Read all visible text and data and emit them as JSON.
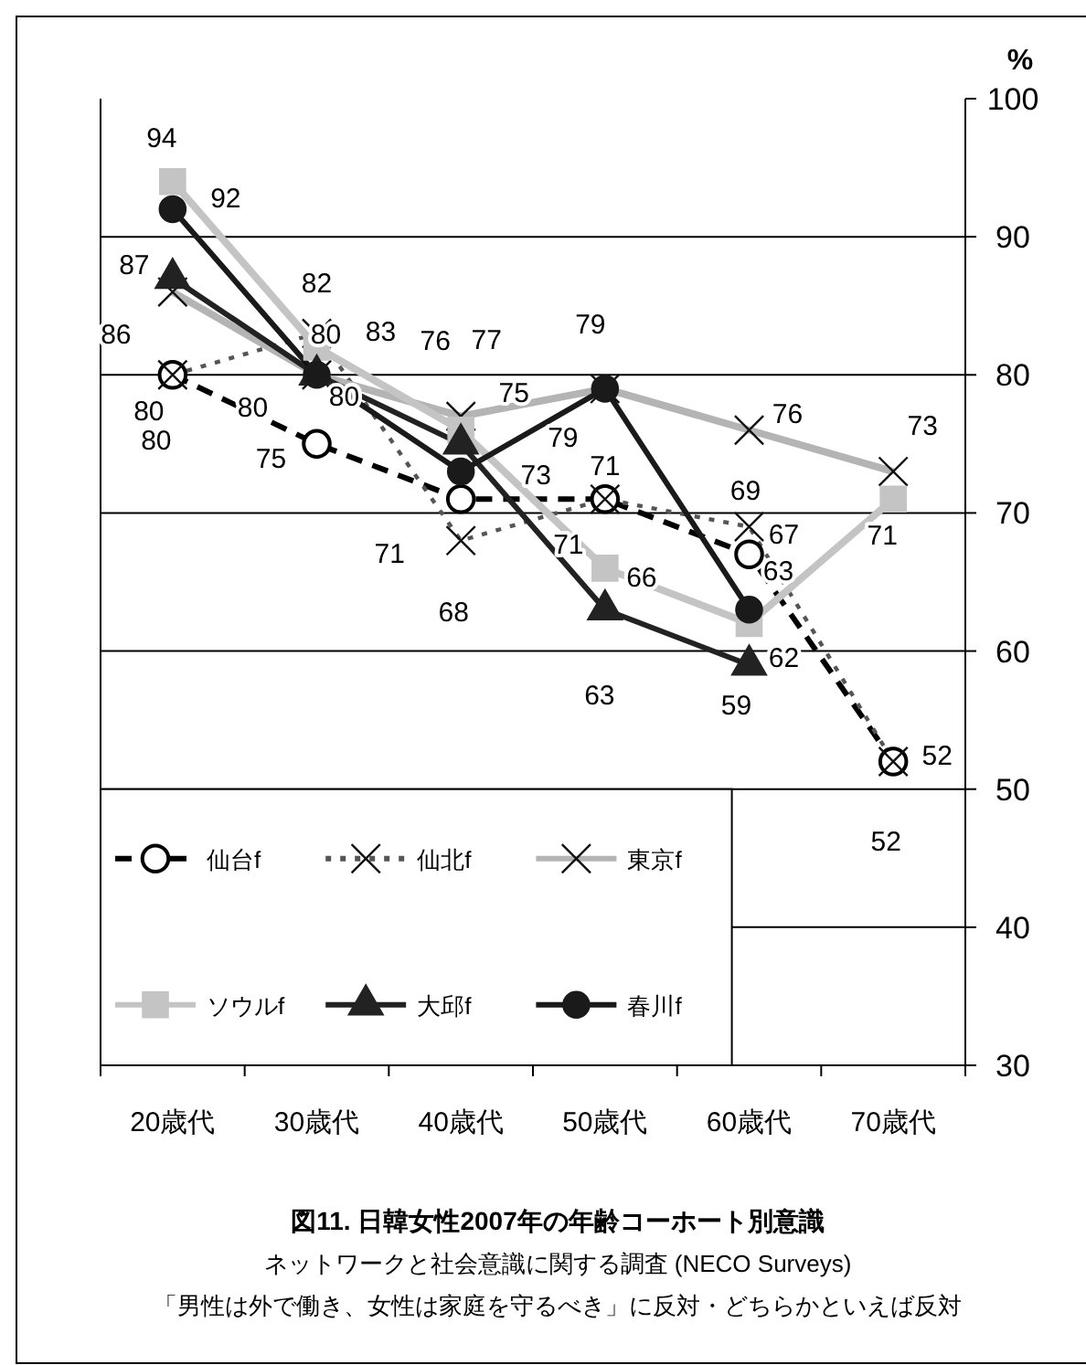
{
  "chart_data": {
    "type": "line",
    "title": "図11. 日韓女性2007年の年齢コーホート別意識",
    "subtitle": "ネットワークと社会意識に関する調査 (NECO Surveys)",
    "annotations": [
      "「男性は外で働き、女性は家庭を守るべき」に反対・どちらかといえば反対"
    ],
    "ylabel": "%",
    "categories": [
      "20歳代",
      "30歳代",
      "40歳代",
      "50歳代",
      "60歳代",
      "70歳代"
    ],
    "ylim": [
      30,
      100
    ],
    "yticks": [
      30,
      40,
      50,
      60,
      70,
      80,
      90,
      100
    ],
    "grid": "y",
    "legend": "bottom left",
    "data_labels": true,
    "series": [
      {
        "name": "仙台f",
        "color": "#000000",
        "marker": "circle",
        "line_style": "dashed",
        "values": [
          80,
          75,
          71,
          71,
          67,
          52
        ]
      },
      {
        "name": "仙北f",
        "color": "#555555",
        "marker": "cross",
        "line_style": "dotted",
        "values": [
          80,
          83,
          68,
          71,
          69,
          52
        ]
      },
      {
        "name": "東京f",
        "color": "#b4b4b4",
        "marker": "cross",
        "line_style": "solid",
        "values": [
          86,
          80,
          77,
          79,
          76,
          73
        ]
      },
      {
        "name": "ソウルf",
        "color": "#c4c4c4",
        "marker": "square",
        "line_style": "solid",
        "values": [
          94,
          82,
          76,
          66,
          62,
          71
        ]
      },
      {
        "name": "大邱f",
        "color": "#222222",
        "marker": "triangle",
        "line_style": "solid",
        "values": [
          87,
          80,
          75,
          63,
          59,
          null
        ]
      },
      {
        "name": "春川f",
        "color": "#1a1a1a",
        "marker": "circle",
        "line_style": "solid",
        "values": [
          92,
          80,
          73,
          79,
          63,
          null
        ]
      }
    ]
  }
}
